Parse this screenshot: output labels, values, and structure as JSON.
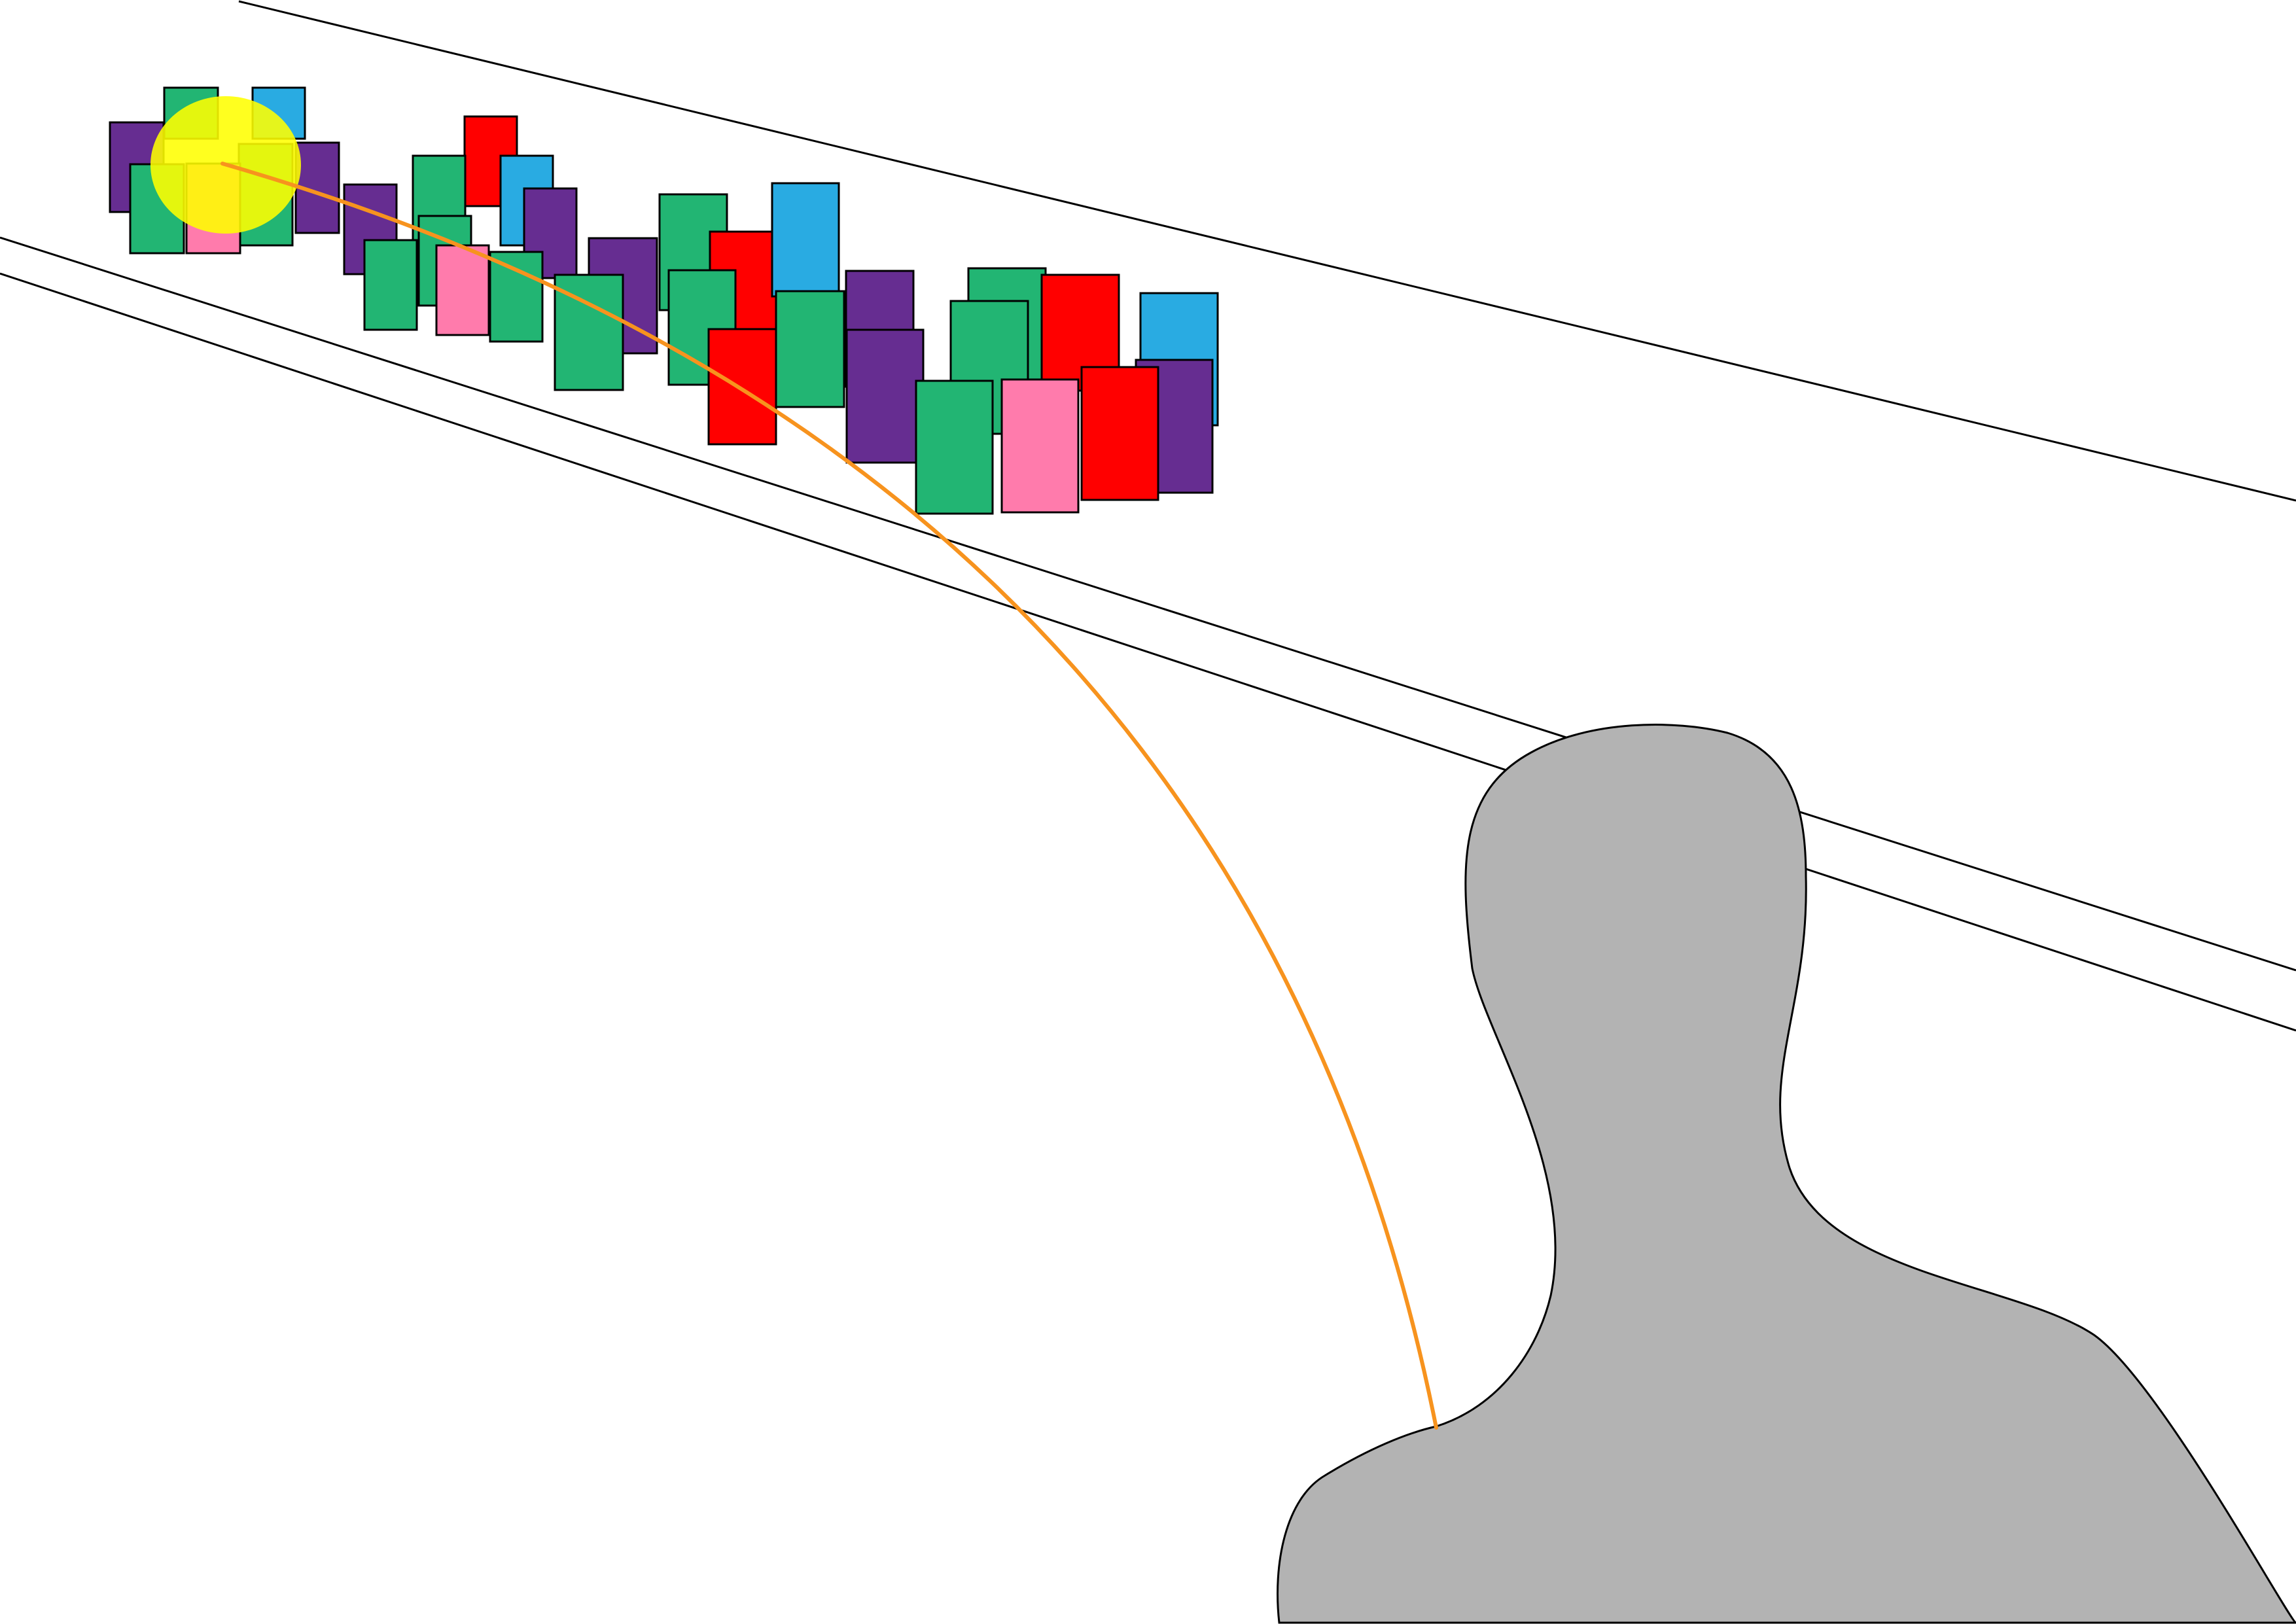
{
  "colors": {
    "green": "#22b573",
    "purple": "#662d91",
    "blue": "#29abe2",
    "red": "#ff0000",
    "pink": "#ff7bac",
    "highlight": "#ffff00",
    "ray": "#f7931e",
    "figure": "#b3b3b3",
    "outline": "#000000"
  },
  "objects": {
    "observer": "silhouette",
    "highlighted_block": "green",
    "block_count": 44
  }
}
